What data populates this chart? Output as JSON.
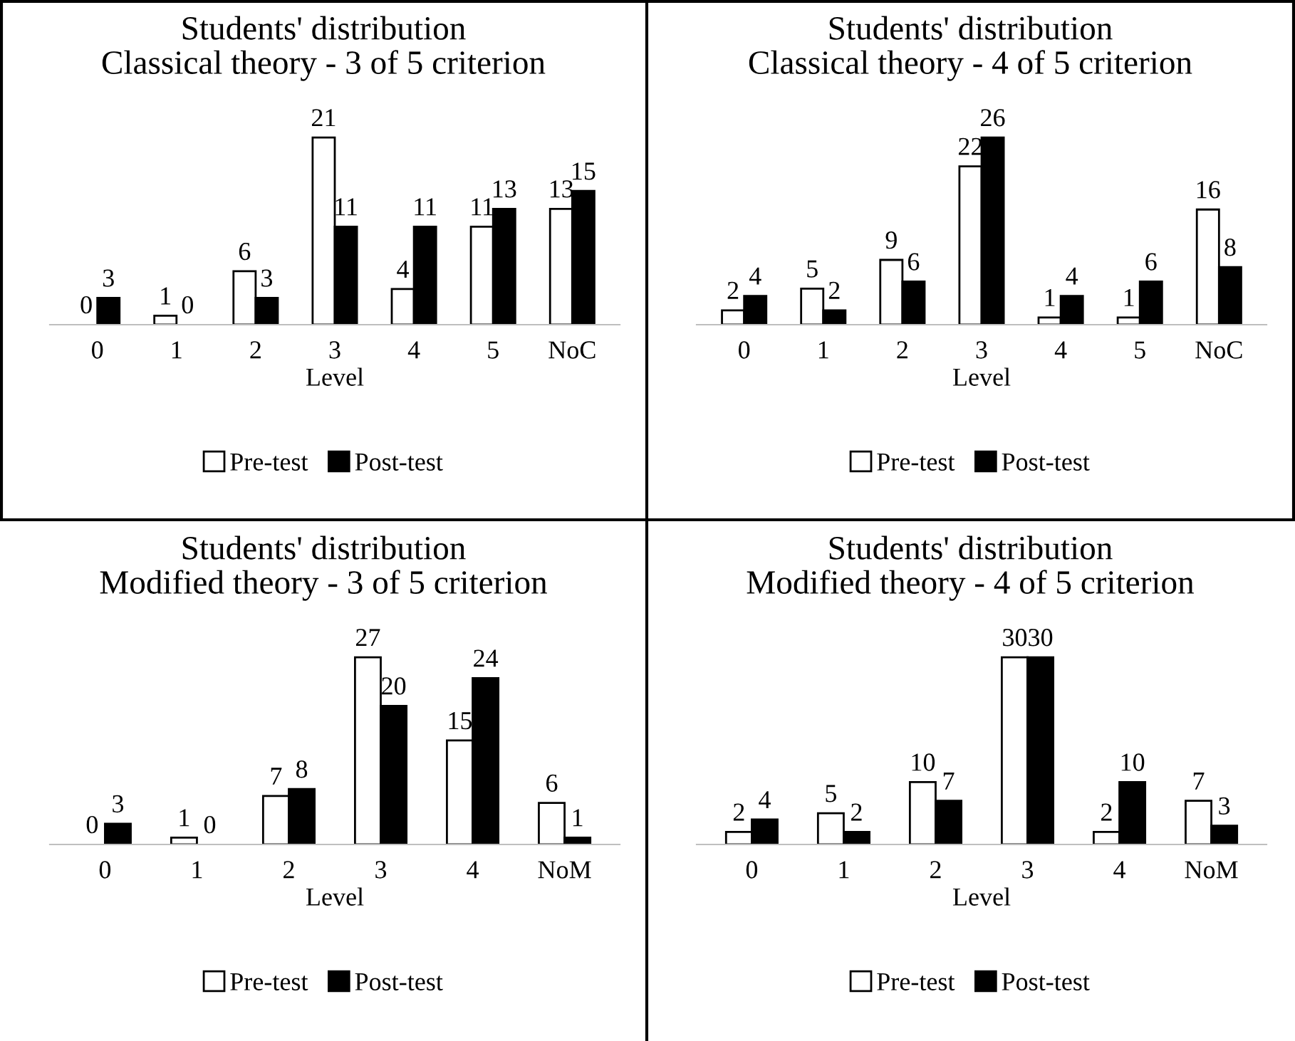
{
  "chart_data": [
    {
      "type": "bar",
      "title": "Students' distribution",
      "subtitle": "Classical theory - 3 of 5 criterion",
      "xlabel": "Level",
      "categories": [
        "0",
        "1",
        "2",
        "3",
        "4",
        "5",
        "NoC"
      ],
      "series": [
        {
          "name": "Pre-test",
          "color": "#ffffff",
          "values": [
            0,
            1,
            6,
            21,
            4,
            11,
            13
          ]
        },
        {
          "name": "Post-test",
          "color": "#000000",
          "values": [
            3,
            0,
            3,
            11,
            11,
            13,
            15
          ]
        }
      ],
      "data_labels": true,
      "legend": "bottom",
      "grid": false,
      "tick_labels": "x"
    },
    {
      "type": "bar",
      "title": "Students' distribution",
      "subtitle": "Classical theory - 4 of 5 criterion",
      "xlabel": "Level",
      "categories": [
        "0",
        "1",
        "2",
        "3",
        "4",
        "5",
        "NoC"
      ],
      "series": [
        {
          "name": "Pre-test",
          "color": "#ffffff",
          "values": [
            2,
            5,
            9,
            22,
            1,
            1,
            16
          ]
        },
        {
          "name": "Post-test",
          "color": "#000000",
          "values": [
            4,
            2,
            6,
            26,
            4,
            6,
            8
          ]
        }
      ],
      "data_labels": true,
      "legend": "bottom",
      "grid": false,
      "tick_labels": "x"
    },
    {
      "type": "bar",
      "title": "Students' distribution",
      "subtitle": "Modified theory - 3 of 5 criterion",
      "xlabel": "Level",
      "categories": [
        "0",
        "1",
        "2",
        "3",
        "4",
        "NoM"
      ],
      "series": [
        {
          "name": "Pre-test",
          "color": "#ffffff",
          "values": [
            0,
            1,
            7,
            27,
            15,
            6
          ]
        },
        {
          "name": "Post-test",
          "color": "#000000",
          "values": [
            3,
            0,
            8,
            20,
            24,
            1
          ]
        }
      ],
      "data_labels": true,
      "legend": "bottom",
      "grid": false,
      "tick_labels": "x"
    },
    {
      "type": "bar",
      "title": "Students' distribution",
      "subtitle": "Modified theory - 4 of 5 criterion",
      "xlabel": "Level",
      "categories": [
        "0",
        "1",
        "2",
        "3",
        "4",
        "NoM"
      ],
      "series": [
        {
          "name": "Pre-test",
          "color": "#ffffff",
          "values": [
            2,
            5,
            10,
            30,
            2,
            7
          ]
        },
        {
          "name": "Post-test",
          "color": "#000000",
          "values": [
            4,
            2,
            7,
            30,
            10,
            3
          ]
        }
      ],
      "data_labels": true,
      "legend": "bottom",
      "grid": false,
      "tick_labels": "x"
    }
  ]
}
